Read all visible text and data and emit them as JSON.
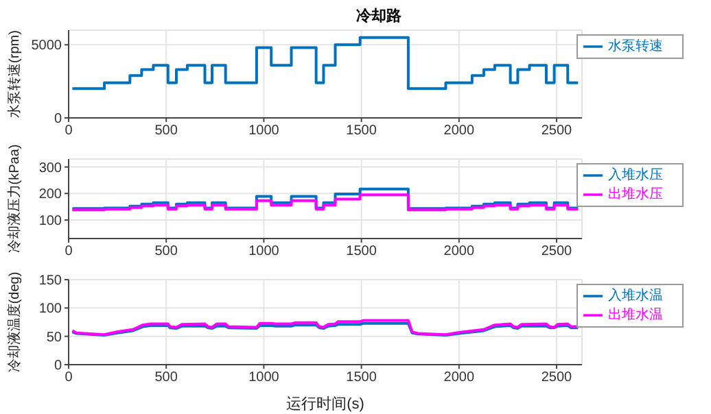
{
  "chart_data": [
    {
      "type": "step",
      "title": "冷却路",
      "ylabel": "水泵转速(rpm)",
      "xlim": [
        0,
        2630
      ],
      "xticks": [
        0,
        500,
        1000,
        1500,
        2000,
        2500
      ],
      "ylim": [
        0,
        6000
      ],
      "yticks": [
        0,
        5000
      ],
      "grid": true,
      "legend": "top right",
      "line_style": "solid",
      "marker": "none",
      "x": [
        19,
        183,
        314,
        374,
        434,
        509,
        552,
        608,
        698,
        735,
        804,
        963,
        1038,
        1141,
        1268,
        1306,
        1366,
        1493,
        1740,
        1932,
        2067,
        2127,
        2183,
        2263,
        2301,
        2361,
        2447,
        2488,
        2557,
        2610
      ],
      "series": [
        {
          "name": "水泵转速",
          "color": "#0072bd",
          "values": [
            2000,
            2400,
            2900,
            3300,
            3600,
            2400,
            3300,
            3600,
            2400,
            3600,
            2400,
            4800,
            3600,
            4800,
            2400,
            3600,
            5000,
            5500,
            2000,
            2400,
            2900,
            3300,
            3600,
            2400,
            3300,
            3600,
            2400,
            3600,
            2400,
            2400
          ]
        }
      ]
    },
    {
      "type": "step",
      "ylabel": "冷却液压力(kPaa)",
      "xlim": [
        0,
        2630
      ],
      "xticks": [
        0,
        500,
        1000,
        1500,
        2000,
        2500
      ],
      "ylim": [
        30,
        330
      ],
      "yticks": [
        100,
        200,
        300
      ],
      "grid": true,
      "legend": "top right",
      "line_style": "solid",
      "marker": "none",
      "x": [
        19,
        183,
        314,
        374,
        434,
        509,
        552,
        608,
        698,
        735,
        804,
        963,
        1038,
        1141,
        1268,
        1306,
        1366,
        1493,
        1740,
        1932,
        2067,
        2127,
        2183,
        2263,
        2301,
        2361,
        2447,
        2488,
        2557,
        2610
      ],
      "series": [
        {
          "name": "入堆水压",
          "color": "#0072bd",
          "values": [
            143,
            145,
            152,
            160,
            165,
            145,
            160,
            165,
            145,
            165,
            145,
            189,
            165,
            189,
            145,
            165,
            198,
            217,
            143,
            145,
            152,
            160,
            165,
            145,
            160,
            165,
            145,
            165,
            145,
            145
          ]
        },
        {
          "name": "出堆水压",
          "color": "#ff00ff",
          "values": [
            138,
            141,
            147,
            153,
            156,
            141,
            153,
            156,
            141,
            156,
            141,
            173,
            156,
            173,
            141,
            156,
            179,
            195,
            138,
            141,
            147,
            153,
            156,
            141,
            153,
            156,
            141,
            156,
            141,
            141
          ]
        }
      ]
    },
    {
      "type": "line",
      "ylabel": "冷却液温度(deg)",
      "xlabel": "运行时间(s)",
      "xlim": [
        0,
        2630
      ],
      "xticks": [
        0,
        500,
        1000,
        1500,
        2000,
        2500
      ],
      "ylim": [
        0,
        150
      ],
      "yticks": [
        0,
        50,
        100,
        150
      ],
      "grid": true,
      "legend": "top right",
      "line_style": "solid",
      "marker": "none",
      "x": [
        19,
        40,
        183,
        250,
        330,
        380,
        420,
        509,
        520,
        552,
        580,
        698,
        715,
        735,
        760,
        804,
        820,
        963,
        980,
        1038,
        1060,
        1141,
        1160,
        1268,
        1285,
        1306,
        1330,
        1366,
        1380,
        1493,
        1510,
        1740,
        1760,
        1790,
        1932,
        2000,
        2127,
        2183,
        2263,
        2280,
        2301,
        2320,
        2447,
        2465,
        2488,
        2505,
        2557,
        2575,
        2610
      ],
      "series": [
        {
          "name": "入堆水温",
          "color": "#0072bd",
          "values": [
            58,
            55,
            52,
            56,
            60,
            67,
            69,
            69,
            65,
            64,
            68,
            68,
            65,
            64,
            68,
            68,
            65,
            64,
            69,
            69,
            68,
            68,
            70,
            70,
            65,
            64,
            68,
            69,
            71,
            71,
            73,
            73,
            56,
            54,
            52,
            55,
            60,
            67,
            69,
            65,
            64,
            68,
            68,
            65,
            65,
            68,
            69,
            65,
            65
          ]
        },
        {
          "name": "出堆水温",
          "color": "#ff00ff",
          "values": [
            60,
            56,
            53,
            58,
            62,
            70,
            72,
            72,
            67,
            66,
            71,
            72,
            67,
            66,
            72,
            72,
            67,
            66,
            73,
            73,
            72,
            72,
            74,
            74,
            67,
            66,
            71,
            72,
            76,
            76,
            78,
            78,
            58,
            55,
            53,
            57,
            62,
            70,
            72,
            67,
            66,
            71,
            72,
            67,
            66,
            71,
            72,
            67,
            67
          ]
        }
      ]
    }
  ]
}
